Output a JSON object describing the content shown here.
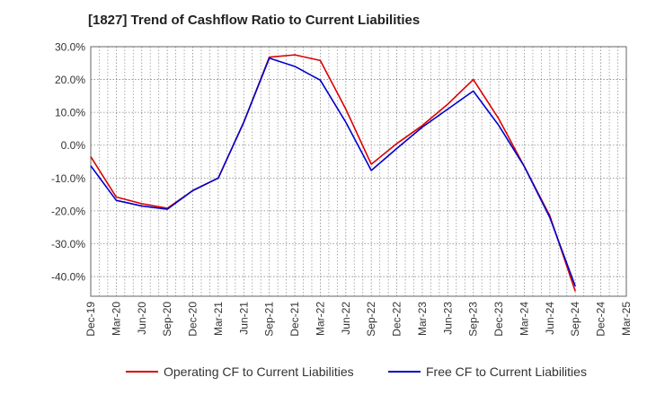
{
  "chart_data": {
    "type": "line",
    "title": "[1827]  Trend of Cashflow Ratio to Current Liabilities",
    "xlabel": "",
    "ylabel": "",
    "categories": [
      "Dec-19",
      "Mar-20",
      "Jun-20",
      "Sep-20",
      "Dec-20",
      "Mar-21",
      "Jun-21",
      "Sep-21",
      "Dec-21",
      "Mar-22",
      "Jun-22",
      "Sep-22",
      "Dec-22",
      "Mar-23",
      "Jun-23",
      "Sep-23",
      "Dec-23",
      "Mar-24",
      "Jun-24",
      "Sep-24",
      "Dec-24",
      "Mar-25"
    ],
    "y_ticks": [
      30,
      20,
      10,
      0,
      -10,
      -20,
      -30,
      -40
    ],
    "y_tick_labels": [
      "30.0%",
      "20.0%",
      "10.0%",
      "0.0%",
      "-10.0%",
      "-20.0%",
      "-30.0%",
      "-40.0%"
    ],
    "ylim": [
      -46,
      30
    ],
    "grid": true,
    "legend_position": "bottom",
    "series": [
      {
        "name": "Operating CF to Current Liabilities",
        "color": "#dd0000",
        "values": [
          -3.5,
          -15.8,
          -17.8,
          -19.2,
          -13.8,
          -10.0,
          7.0,
          26.8,
          27.5,
          25.8,
          11.0,
          -5.8,
          0.5,
          6.0,
          12.5,
          20.0,
          8.0,
          -6.5,
          -21.5,
          -44.5,
          null,
          null
        ]
      },
      {
        "name": "Free CF to Current Liabilities",
        "color": "#0000cc",
        "values": [
          -6.3,
          -16.8,
          -18.5,
          -19.5,
          -13.8,
          -10.0,
          7.0,
          26.5,
          24.0,
          19.8,
          7.0,
          -7.7,
          -1.0,
          5.5,
          11.0,
          16.5,
          6.0,
          -6.5,
          -22.0,
          -43.0,
          null,
          null
        ]
      }
    ]
  }
}
